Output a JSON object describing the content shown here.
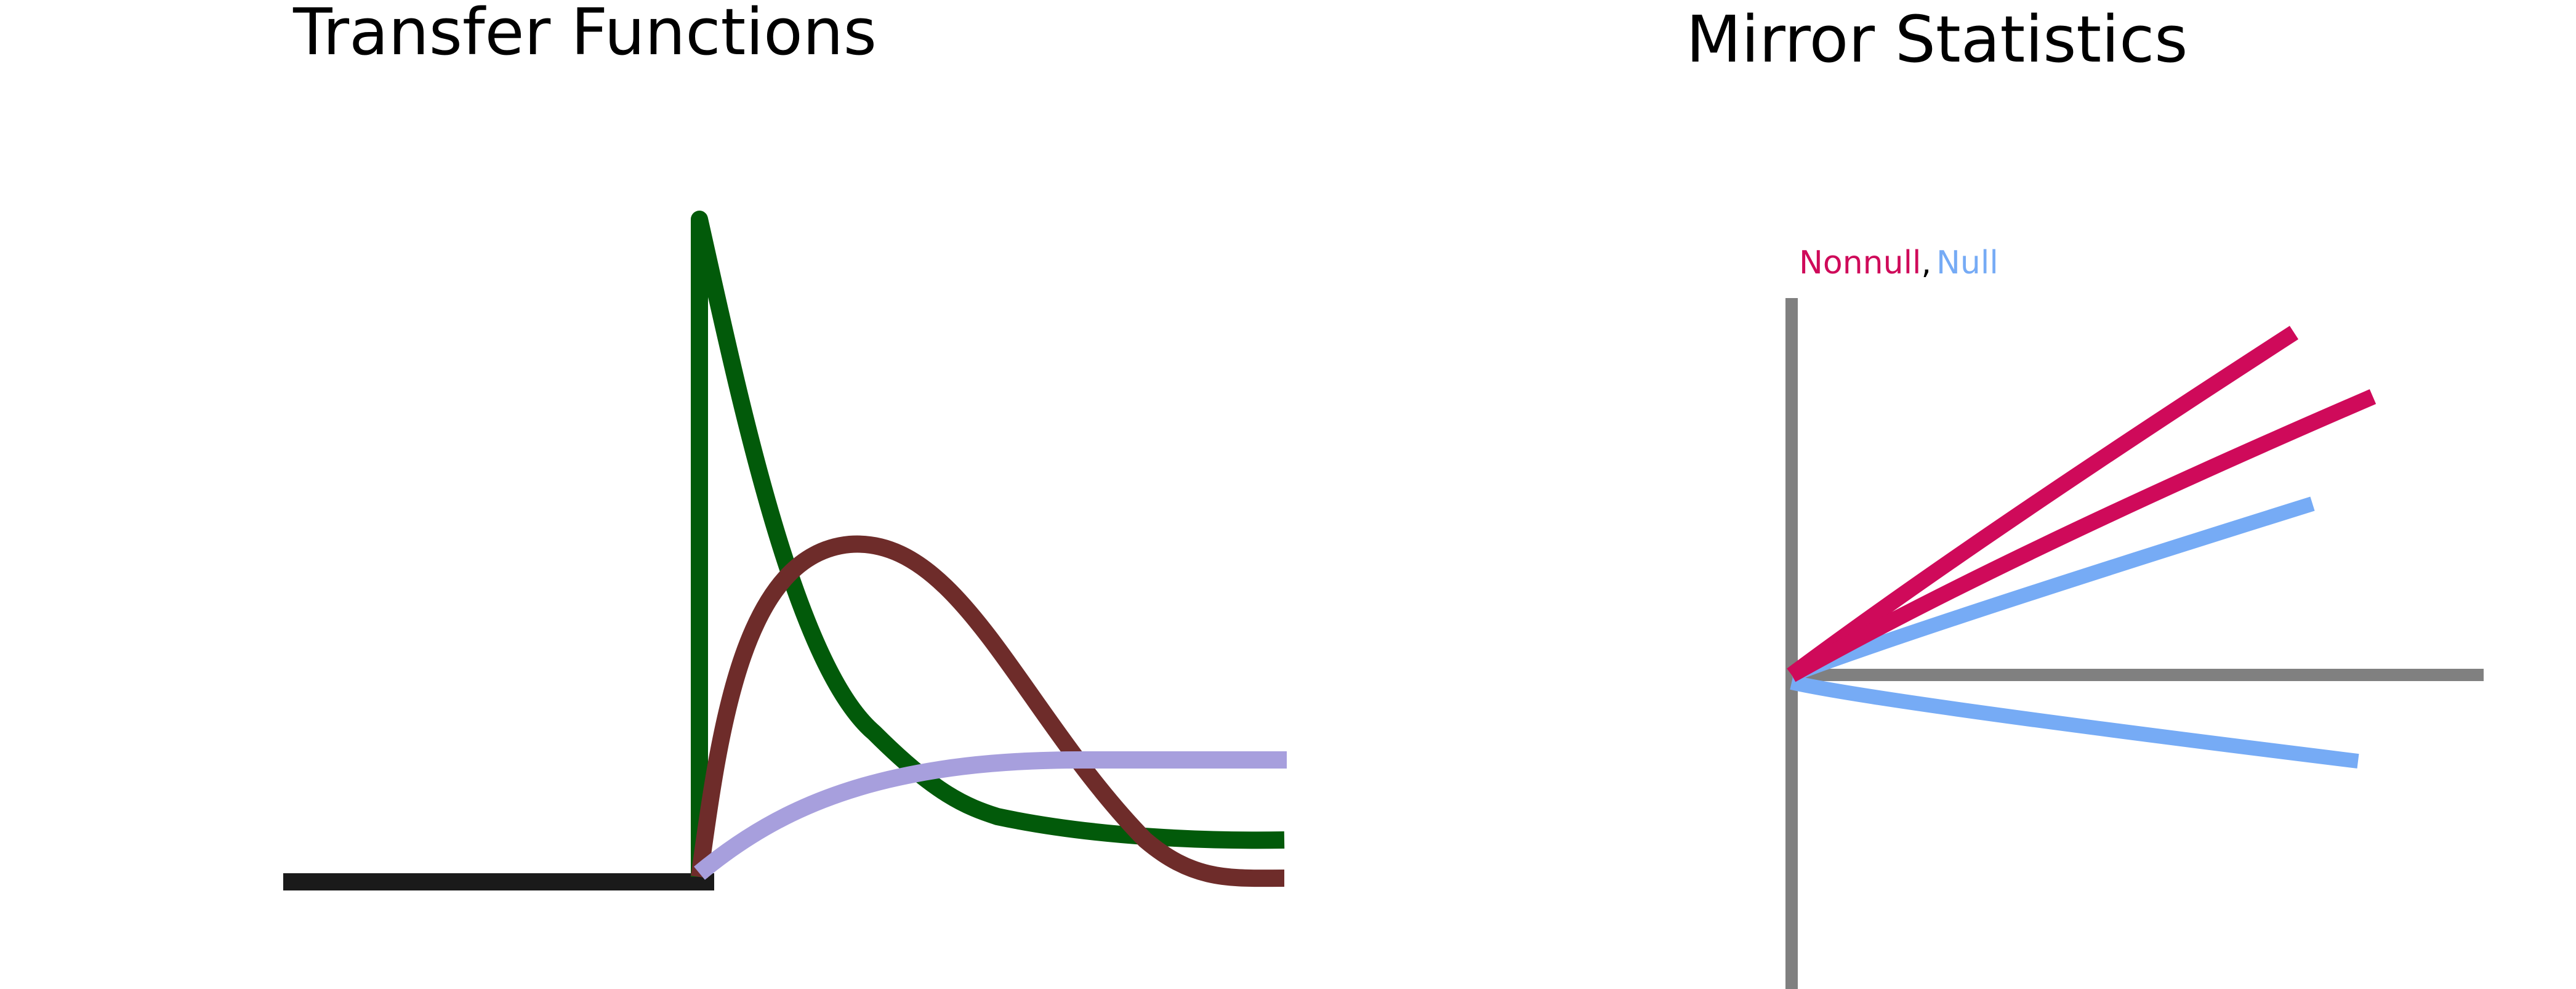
{
  "left_panel": {
    "title": "Transfer Functions"
  },
  "right_panel": {
    "title": "Mirror Statistics",
    "legend": {
      "nonnull": "Nonnull",
      "separator": ",",
      "null": "Null"
    }
  },
  "colors": {
    "baseline": "#1a1a1a",
    "green_curve": "#025a0a",
    "brown_curve": "#6e2c2a",
    "lavender_curve": "#a79fdd",
    "nonnull": "#cf0a5a",
    "null": "#76abf5",
    "axis": "#808080"
  }
}
